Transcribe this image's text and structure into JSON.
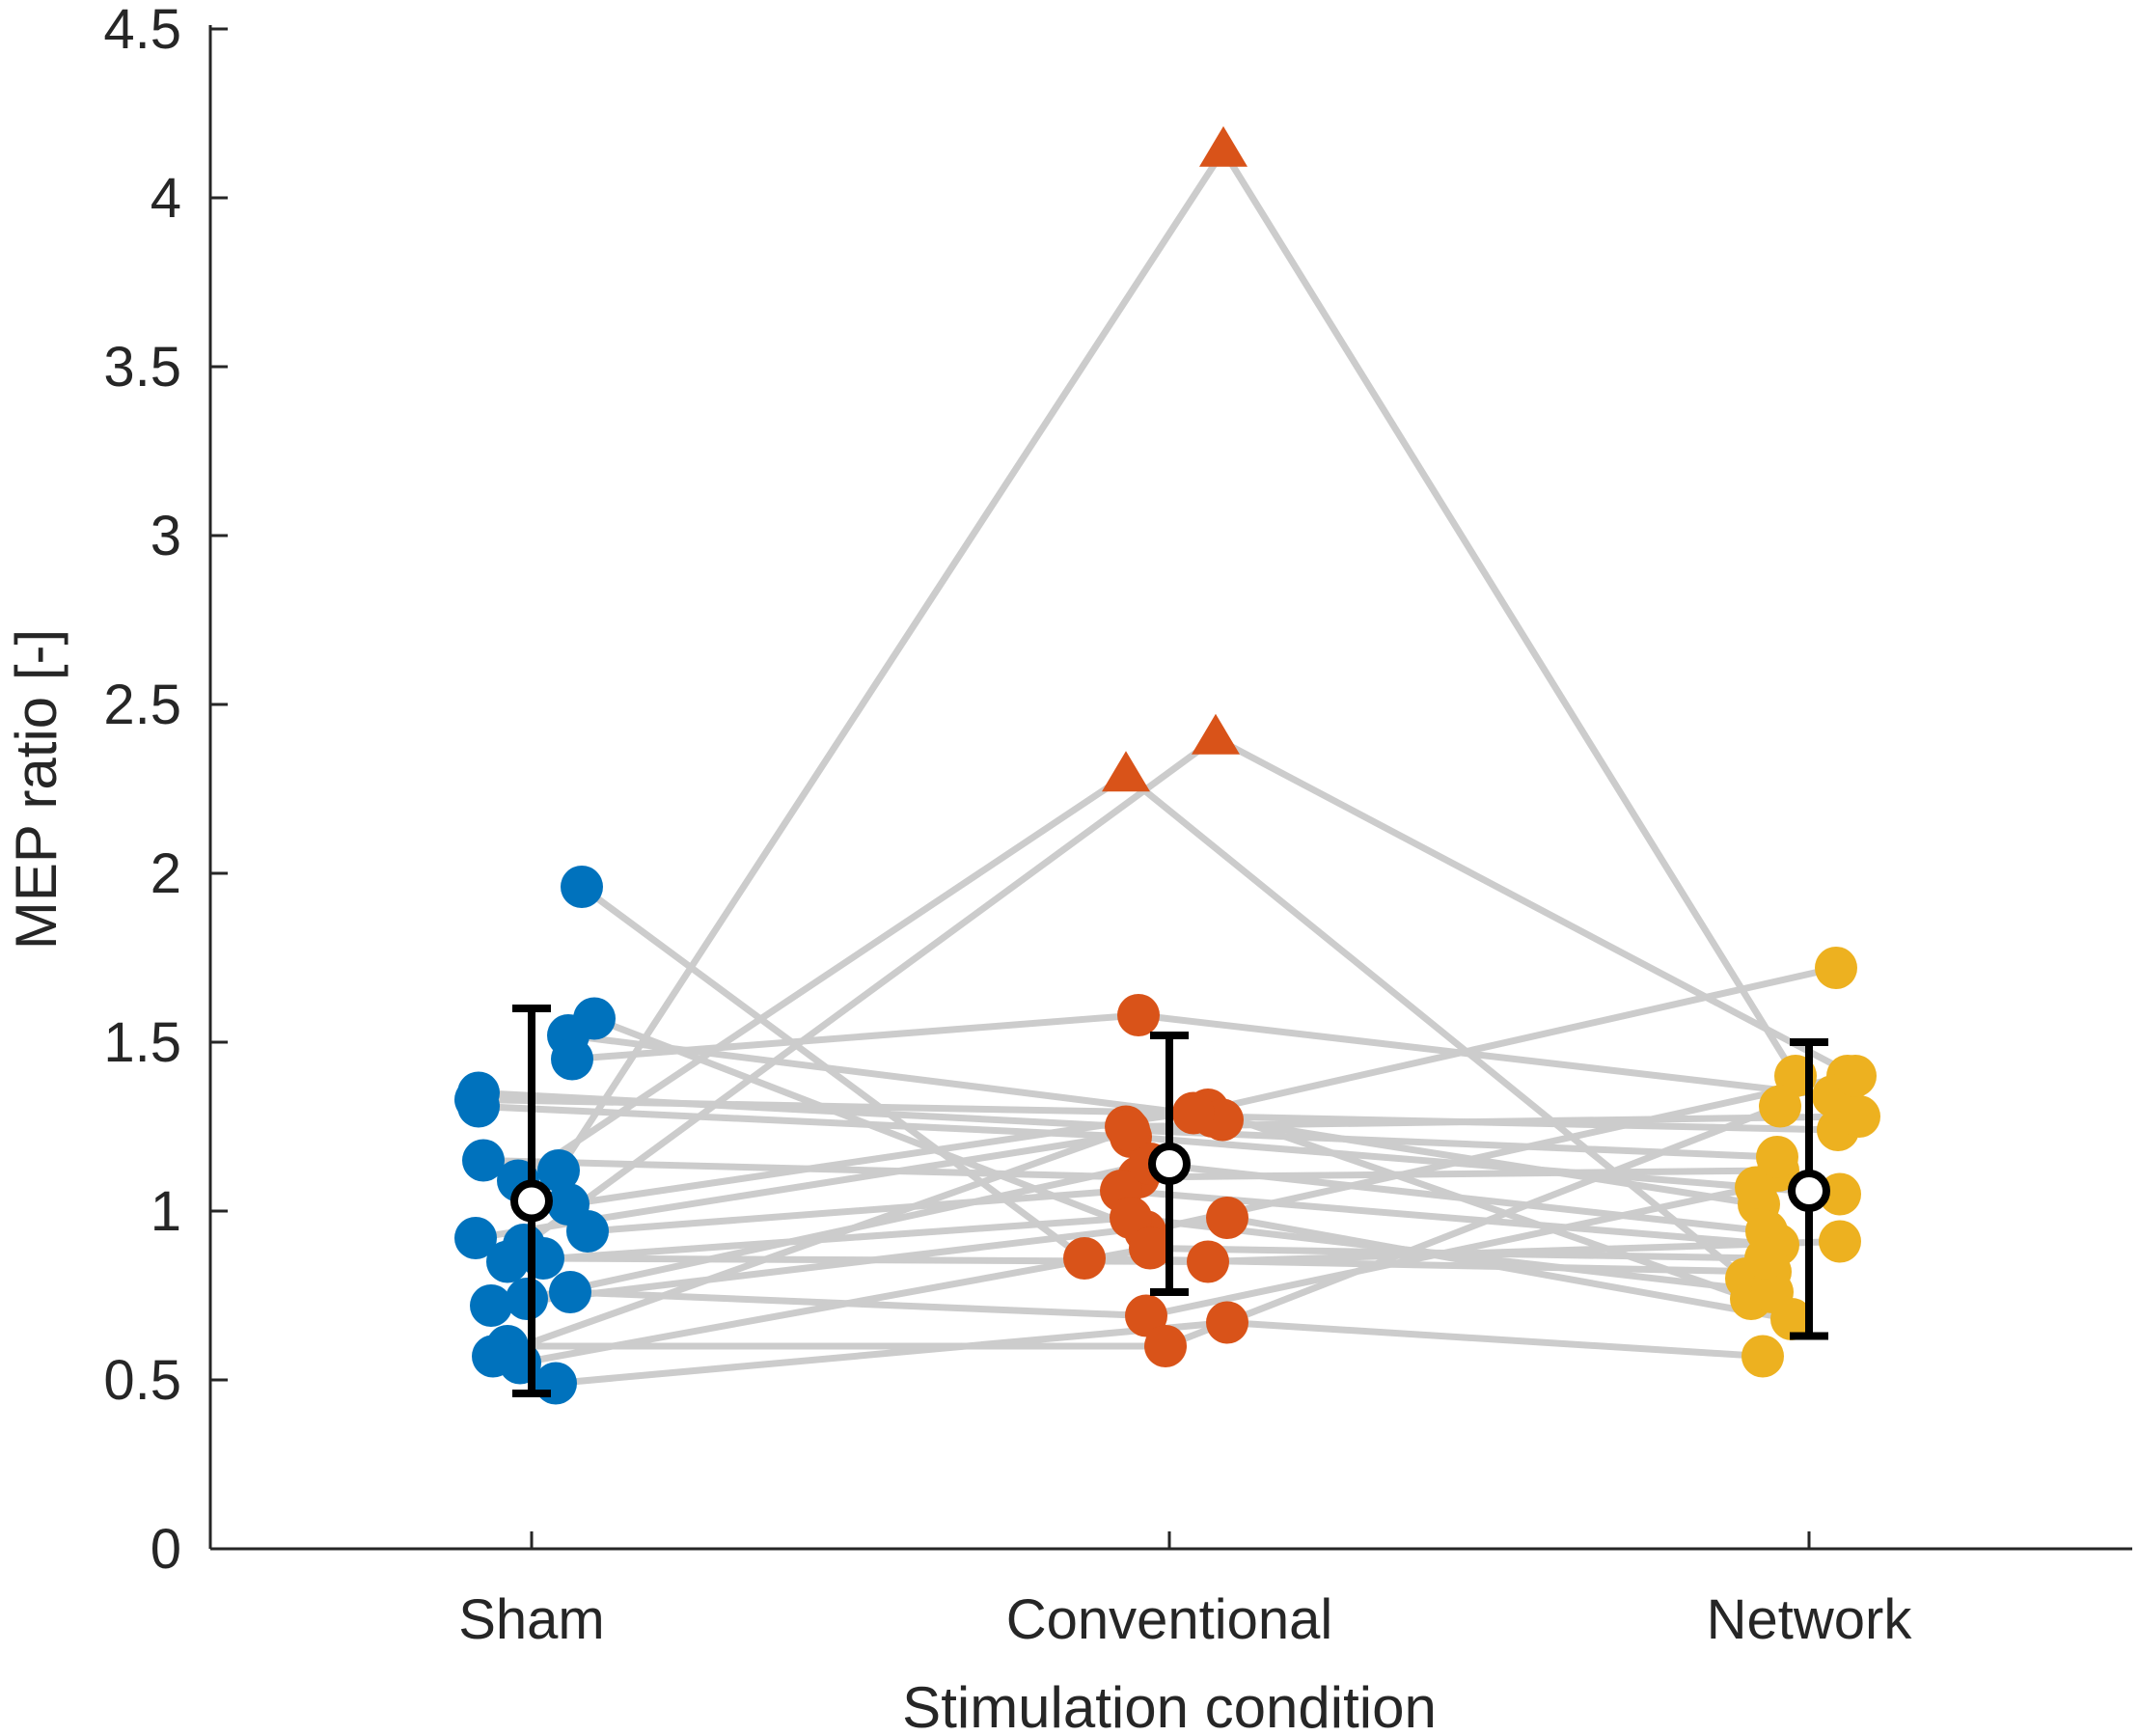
{
  "chart_data": {
    "type": "scatter",
    "title": "",
    "xlabel": "Stimulation condition",
    "ylabel": "MEP ratio [-]",
    "ylim": [
      0,
      4.5
    ],
    "yticks": [
      0,
      0.5,
      1,
      1.5,
      2,
      2.5,
      3,
      3.5,
      4,
      4.5
    ],
    "ytick_labels": [
      "0",
      "0.5",
      "1",
      "1.5",
      "2",
      "2.5",
      "3",
      "3.5",
      "4",
      "4.5"
    ],
    "categories": [
      "Sham",
      "Conventional",
      "Network"
    ],
    "colors": {
      "Sham": "#0072BD",
      "Conventional": "#D95319",
      "Network": "#EDB120",
      "lines": "#CCCCCC",
      "summary": "#000000",
      "axis": "#262626"
    },
    "outlier_marker": "triangle",
    "summary": [
      {
        "condition": "Sham",
        "mean": 1.03,
        "lower": 0.46,
        "upper": 1.6
      },
      {
        "condition": "Conventional",
        "mean": 1.14,
        "lower": 0.76,
        "upper": 1.52
      },
      {
        "condition": "Network",
        "mean": 1.06,
        "lower": 0.63,
        "upper": 1.5
      }
    ],
    "subjects": [
      [
        1.96,
        0.86,
        0.82
      ],
      [
        1.57,
        0.94,
        1.4
      ],
      [
        1.52,
        1.28,
        1.24
      ],
      [
        1.45,
        1.58,
        1.34
      ],
      [
        1.35,
        1.25,
        1.28
      ],
      [
        1.31,
        1.22,
        1.05
      ],
      [
        1.15,
        1.1,
        1.12
      ],
      [
        1.12,
        4.14,
        1.4
      ],
      [
        1.09,
        2.29,
        0.8
      ],
      [
        1.02,
        1.3,
        0.74
      ],
      [
        0.94,
        1.06,
        0.9
      ],
      [
        0.92,
        1.27,
        1.02
      ],
      [
        0.9,
        2.4,
        1.4
      ],
      [
        0.86,
        0.85,
        0.91
      ],
      [
        0.85,
        0.98,
        0.76
      ],
      [
        0.76,
        0.69,
        1.07
      ],
      [
        0.74,
        1.14,
        0.94
      ],
      [
        0.72,
        0.98,
        0.68
      ],
      [
        0.6,
        0.6,
        1.31
      ],
      [
        0.57,
        1.24,
        1.16
      ],
      [
        0.55,
        0.89,
        0.86
      ],
      [
        0.49,
        0.67,
        0.57
      ],
      [
        1.33,
        1.29,
        1.72
      ]
    ],
    "outliers": [
      {
        "condition": "Conventional",
        "value": 4.14
      },
      {
        "condition": "Conventional",
        "value": 2.4
      },
      {
        "condition": "Conventional",
        "value": 2.29
      }
    ]
  }
}
